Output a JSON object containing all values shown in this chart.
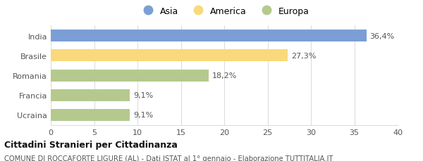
{
  "categories": [
    "Ucraina",
    "Francia",
    "Romania",
    "Brasile",
    "India"
  ],
  "values": [
    9.1,
    9.1,
    18.2,
    27.3,
    36.4
  ],
  "labels": [
    "9,1%",
    "9,1%",
    "18,2%",
    "27,3%",
    "36,4%"
  ],
  "colors": [
    "#b5c98e",
    "#b5c98e",
    "#b5c98e",
    "#f9d97c",
    "#7b9fd4"
  ],
  "legend": [
    {
      "label": "Asia",
      "color": "#7b9fd4"
    },
    {
      "label": "America",
      "color": "#f9d97c"
    },
    {
      "label": "Europa",
      "color": "#b5c98e"
    }
  ],
  "xlim": [
    0,
    40
  ],
  "xticks": [
    0,
    5,
    10,
    15,
    20,
    25,
    30,
    35,
    40
  ],
  "title_bold": "Cittadini Stranieri per Cittadinanza",
  "subtitle": "COMUNE DI ROCCAFORTE LIGURE (AL) - Dati ISTAT al 1° gennaio - Elaborazione TUTTITALIA.IT",
  "bg_color": "#ffffff",
  "grid_color": "#dddddd",
  "label_color": "#555555",
  "title_color": "#111111"
}
